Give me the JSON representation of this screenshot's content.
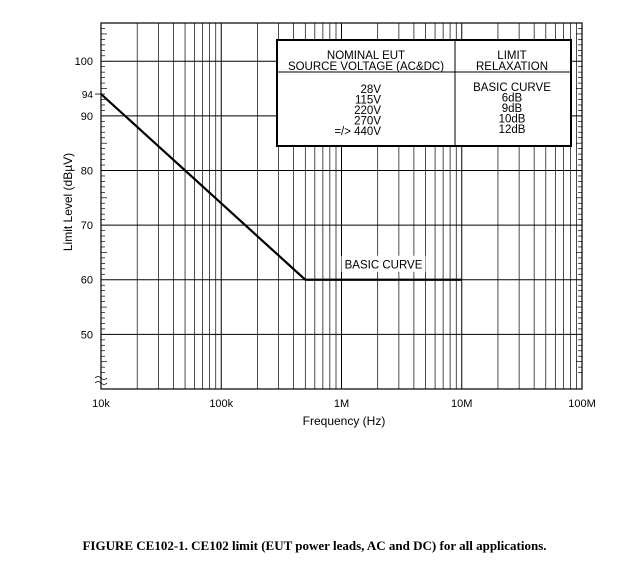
{
  "caption": "FIGURE CE102-1.  CE102 limit (EUT power leads, AC and DC) for all applications.",
  "chart_data": {
    "type": "line",
    "title": "",
    "xlabel": "Frequency (Hz)",
    "ylabel": "Limit Level (dBµV)",
    "xscale": "log",
    "xlim": [
      10000,
      100000000
    ],
    "ylim": [
      40,
      107
    ],
    "grid": true,
    "x_ticks": [
      {
        "value": 10000,
        "label": "10k"
      },
      {
        "value": 100000,
        "label": "100k"
      },
      {
        "value": 1000000,
        "label": "1M"
      },
      {
        "value": 10000000,
        "label": "10M"
      },
      {
        "value": 100000000,
        "label": "100M"
      }
    ],
    "y_ticks": [
      {
        "value": 100,
        "label": "100"
      },
      {
        "value": 94,
        "label": "94"
      },
      {
        "value": 90,
        "label": "90"
      },
      {
        "value": 80,
        "label": "80"
      },
      {
        "value": 70,
        "label": "70"
      },
      {
        "value": 60,
        "label": "60"
      },
      {
        "value": 50,
        "label": "50"
      }
    ],
    "series": [
      {
        "name": "BASIC CURVE",
        "x": [
          10000,
          500000,
          10000000
        ],
        "y": [
          94,
          60,
          60
        ]
      }
    ],
    "annotations": [
      "BASIC CURVE"
    ],
    "legend_table": {
      "header_left": [
        "NOMINAL EUT",
        "SOURCE VOLTAGE (AC&DC)"
      ],
      "header_right": [
        "LIMIT",
        "RELAXATION"
      ],
      "voltages": [
        "28V",
        "115V",
        "220V",
        "270V",
        "=/> 440V"
      ],
      "relaxations": [
        "BASIC CURVE",
        "6dB",
        "9dB",
        "10dB",
        "12dB"
      ]
    }
  }
}
